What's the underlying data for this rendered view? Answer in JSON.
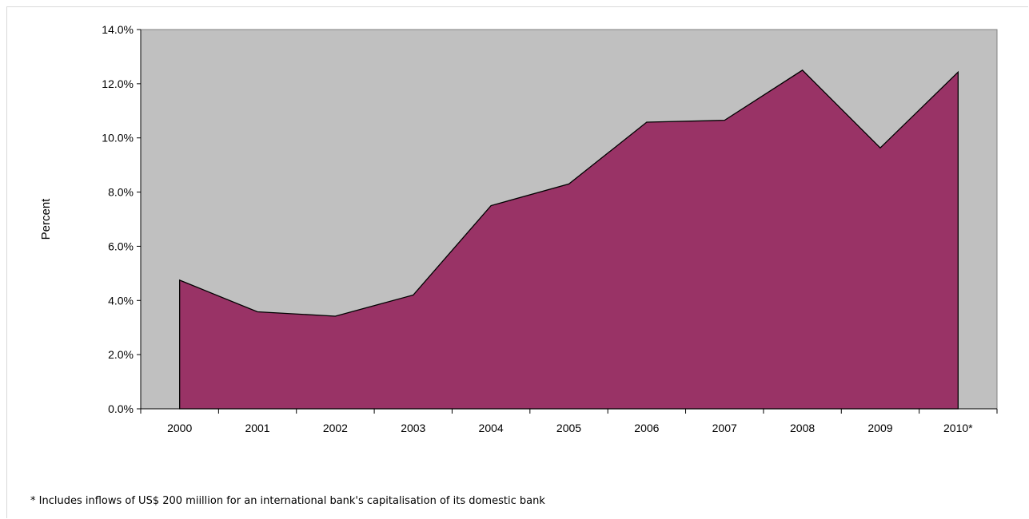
{
  "chart_data": {
    "type": "area",
    "categories": [
      "2000",
      "2001",
      "2002",
      "2003",
      "2004",
      "2005",
      "2006",
      "2007",
      "2008",
      "2009",
      "2010*"
    ],
    "series": [
      {
        "values": [
          4.75,
          3.58,
          3.42,
          4.2,
          7.5,
          8.3,
          10.58,
          10.65,
          12.5,
          9.63,
          12.43
        ]
      }
    ],
    "ylabel": "Percent",
    "yticks": [
      "0.0%",
      "2.0%",
      "4.0%",
      "6.0%",
      "8.0%",
      "10.0%",
      "12.0%",
      "14.0%"
    ],
    "ylim": [
      0,
      14
    ],
    "grid": false,
    "colors": {
      "area": "#993366",
      "plot_background": "#c0c0c0",
      "outline": "#000000"
    }
  },
  "footnote": "* Includes inflows of US$ 200 miillion for an international bank's capitalisation of its domestic bank"
}
